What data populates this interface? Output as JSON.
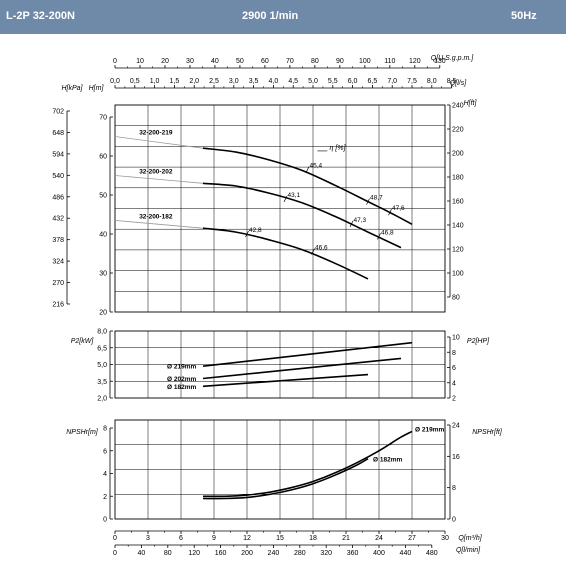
{
  "header": {
    "model": "L-2P 32-200N",
    "speed": "2900 1/min",
    "frequency": "50Hz"
  },
  "colors": {
    "header_bg": "#6e8aa8",
    "header_text": "#ffffff",
    "curve": "#000000",
    "grid": "#000000"
  },
  "chart_data": [
    {
      "type": "line",
      "id": "head",
      "top_axes": [
        {
          "label": "Q[U.S.g.p.m.]",
          "ticks": [
            "0",
            "10",
            "20",
            "30",
            "40",
            "50",
            "60",
            "70",
            "80",
            "90",
            "100",
            "110",
            "120",
            "130"
          ]
        },
        {
          "label": "Q[l/s]",
          "ticks": [
            "0,0",
            "0,5",
            "1,0",
            "1,5",
            "2,0",
            "2,5",
            "3,0",
            "3,5",
            "4,0",
            "4,5",
            "5,0",
            "5,5",
            "6,0",
            "6,5",
            "7,0",
            "7,5",
            "8,0",
            "8,5"
          ]
        }
      ],
      "x_range_m3h": [
        0,
        30
      ],
      "left_axes": [
        {
          "label": "H[kPa]",
          "ticks": [
            "702",
            "648",
            "594",
            "540",
            "486",
            "432",
            "378",
            "324",
            "270",
            "216"
          ]
        },
        {
          "label": "H[m]",
          "ticks": [
            "70",
            "60",
            "50",
            "40",
            "30",
            "20"
          ],
          "ylim": [
            20,
            70
          ]
        }
      ],
      "right_axis": {
        "label": "H[ft]",
        "ticks": [
          "240",
          "220",
          "200",
          "180",
          "160",
          "140",
          "120",
          "100",
          "80"
        ]
      },
      "efficiency_label": "η [%]",
      "series": [
        {
          "name": "32-200-219",
          "x": [
            8.0,
            11,
            14,
            17,
            20,
            23,
            25,
            27
          ],
          "y": [
            62.0,
            61.0,
            59.0,
            56.3,
            52.5,
            48.3,
            45.5,
            42.5
          ],
          "x_ext": [
            0,
            8.0
          ],
          "y_ext": [
            65.0,
            62.0
          ]
        },
        {
          "name": "32-200-202",
          "x": [
            8.0,
            11,
            14,
            17,
            20,
            23,
            26
          ],
          "y": [
            53.0,
            52.3,
            50.5,
            48.0,
            44.5,
            40.5,
            36.5
          ],
          "x_ext": [
            0,
            8.0
          ],
          "y_ext": [
            55.0,
            53.0
          ]
        },
        {
          "name": "32-200-182",
          "x": [
            8.0,
            11,
            14,
            17,
            20,
            23
          ],
          "y": [
            41.5,
            40.5,
            38.5,
            36.0,
            32.5,
            28.5
          ],
          "x_ext": [
            0,
            8.0
          ],
          "y_ext": [
            43.5,
            41.5
          ]
        }
      ],
      "efficiency_points": [
        {
          "label": "45,4",
          "x": 17.5,
          "y": 56.5
        },
        {
          "label": "48,7",
          "x": 23.0,
          "y": 48.3
        },
        {
          "label": "47,6",
          "x": 25.0,
          "y": 45.6
        },
        {
          "label": "43,1",
          "x": 15.5,
          "y": 49.0
        },
        {
          "label": "47,3",
          "x": 21.5,
          "y": 42.6
        },
        {
          "label": "46,8",
          "x": 24.0,
          "y": 39.4
        },
        {
          "label": "42,8",
          "x": 12.0,
          "y": 40.0
        },
        {
          "label": "46,6",
          "x": 18.0,
          "y": 35.5
        }
      ]
    },
    {
      "type": "line",
      "id": "power",
      "left_axis": {
        "label": "P2[kW]",
        "ticks": [
          "8,0",
          "6,5",
          "5,0",
          "3,5",
          "2,0"
        ],
        "ylim": [
          2.0,
          8.0
        ]
      },
      "right_axis": {
        "label": "P2[HP]",
        "ticks": [
          "10",
          "8",
          "6",
          "4",
          "2"
        ]
      },
      "series": [
        {
          "name": "Ø 219mm",
          "x": [
            8,
            27
          ],
          "y": [
            4.85,
            6.95
          ]
        },
        {
          "name": "Ø 202mm",
          "x": [
            8,
            26
          ],
          "y": [
            3.75,
            5.55
          ]
        },
        {
          "name": "Ø 182mm",
          "x": [
            8,
            23
          ],
          "y": [
            3.05,
            4.1
          ]
        }
      ]
    },
    {
      "type": "line",
      "id": "npsh",
      "left_axis": {
        "label": "NPSHr[m]",
        "ticks": [
          "8",
          "6",
          "4",
          "2",
          "0"
        ],
        "ylim": [
          0,
          8
        ]
      },
      "right_axis": {
        "label": "NPSHr[ft]",
        "ticks": [
          "24",
          "16",
          "8",
          "0"
        ]
      },
      "bottom_axes": [
        {
          "label": "Q[m³/h]",
          "ticks": [
            "0",
            "3",
            "6",
            "9",
            "12",
            "15",
            "18",
            "21",
            "24",
            "27",
            "30"
          ]
        },
        {
          "label": "Q[l/min]",
          "ticks": [
            "0",
            "40",
            "80",
            "120",
            "160",
            "200",
            "240",
            "280",
            "320",
            "360",
            "400",
            "440",
            "480"
          ]
        }
      ],
      "series": [
        {
          "name": "Ø 219mm",
          "x": [
            8,
            10,
            12,
            14,
            16,
            18,
            20,
            22,
            24,
            26,
            27
          ],
          "y": [
            2.0,
            2.0,
            2.1,
            2.35,
            2.75,
            3.3,
            4.05,
            4.95,
            6.0,
            7.2,
            7.7
          ]
        },
        {
          "name": "Ø 182mm",
          "x": [
            8,
            10,
            12,
            14,
            16,
            18,
            20,
            22,
            23
          ],
          "y": [
            1.8,
            1.8,
            1.9,
            2.15,
            2.55,
            3.1,
            3.85,
            4.75,
            5.3
          ]
        }
      ]
    }
  ]
}
